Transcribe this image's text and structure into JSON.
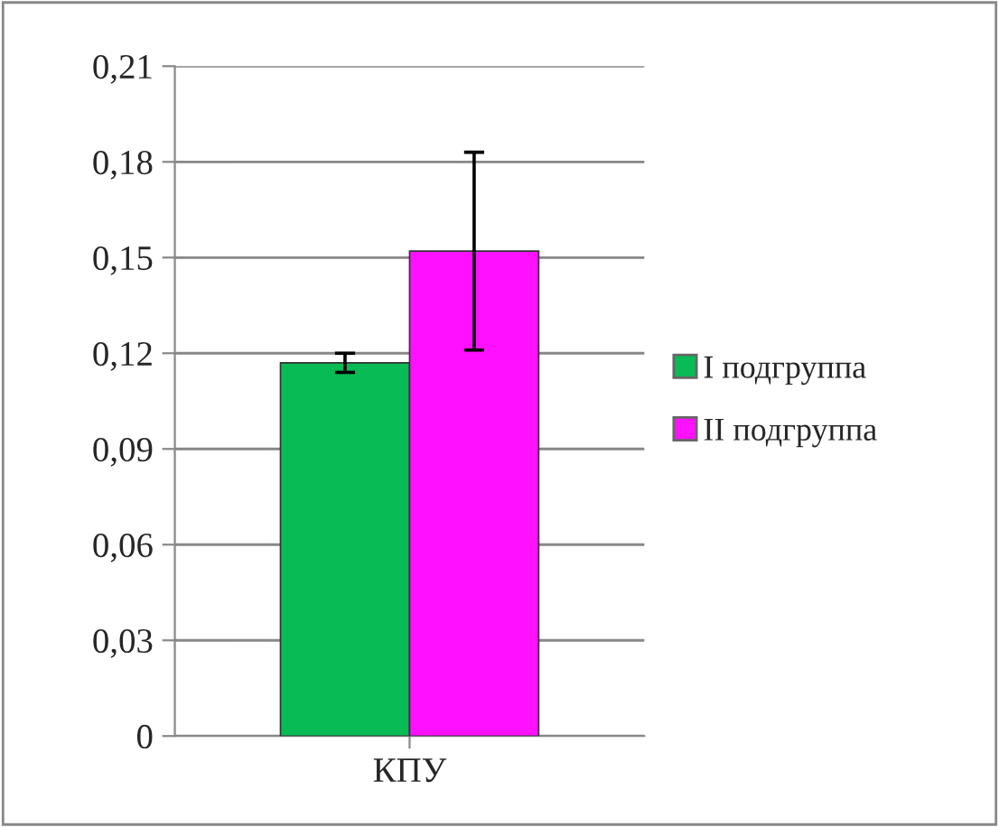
{
  "chart_data": {
    "type": "bar",
    "categories": [
      "КПУ"
    ],
    "series": [
      {
        "name": "I подгруппа",
        "color": "#08bb55",
        "values": [
          0.117
        ],
        "errors": [
          0.003
        ]
      },
      {
        "name": "II подгруппа",
        "color": "#ff10ff",
        "values": [
          0.152
        ],
        "errors": [
          0.031
        ]
      }
    ],
    "ylim": [
      0,
      0.21
    ],
    "yticks": [
      {
        "value": 0,
        "label": "0"
      },
      {
        "value": 0.03,
        "label": "0,03"
      },
      {
        "value": 0.06,
        "label": "0,06"
      },
      {
        "value": 0.09,
        "label": "0,09"
      },
      {
        "value": 0.12,
        "label": "0,12"
      },
      {
        "value": 0.15,
        "label": "0,15"
      },
      {
        "value": 0.18,
        "label": "0,18"
      },
      {
        "value": 0.21,
        "label": "0,21"
      }
    ],
    "grid": "y",
    "legend": "right"
  }
}
